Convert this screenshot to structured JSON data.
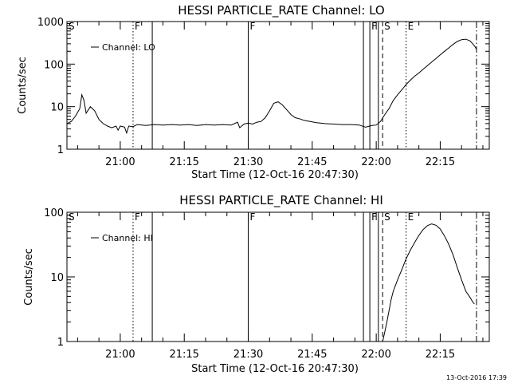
{
  "chart_data": [
    {
      "type": "line",
      "title": "HESSI PARTICLE_RATE Channel: LO",
      "xlabel": "Start Time (12-Oct-16 20:47:30)",
      "ylabel": "Counts/sec",
      "y_scale": "log",
      "ylim": [
        1,
        1000
      ],
      "y_ticks": [
        1,
        10,
        100,
        1000
      ],
      "y_tick_labels": [
        "1",
        "10",
        "100",
        "1000"
      ],
      "xlim": [
        "20:47:30",
        "22:26:30"
      ],
      "x_ticks": [
        "21:00",
        "21:15",
        "21:30",
        "21:45",
        "22:00",
        "22:15"
      ],
      "legend": {
        "position": "top-left",
        "entries": [
          "Channel: LO"
        ]
      },
      "grid": false,
      "series": [
        {
          "name": "Channel: LO",
          "points": [
            [
              "20:47:30",
              4
            ],
            [
              "20:48:30",
              4.5
            ],
            [
              "20:49:30",
              6
            ],
            [
              "20:50:30",
              9
            ],
            [
              "20:51:00",
              19
            ],
            [
              "20:51:30",
              14
            ],
            [
              "20:52:00",
              7
            ],
            [
              "20:53:00",
              10
            ],
            [
              "20:54:00",
              8
            ],
            [
              "20:55:00",
              5
            ],
            [
              "20:56:00",
              4
            ],
            [
              "20:57:00",
              3.5
            ],
            [
              "20:58:00",
              3.2
            ],
            [
              "20:59:00",
              3.5
            ],
            [
              "20:59:30",
              2.8
            ],
            [
              "21:00:00",
              3.5
            ],
            [
              "21:01:00",
              3.3
            ],
            [
              "21:01:30",
              2.4
            ],
            [
              "21:02:00",
              3.5
            ],
            [
              "21:03:00",
              3.4
            ],
            [
              "21:04:00",
              3.8
            ],
            [
              "21:06:00",
              3.6
            ],
            [
              "21:08:00",
              3.8
            ],
            [
              "21:10:00",
              3.7
            ],
            [
              "21:12:00",
              3.8
            ],
            [
              "21:14:00",
              3.7
            ],
            [
              "21:16:00",
              3.8
            ],
            [
              "21:18:00",
              3.6
            ],
            [
              "21:20:00",
              3.8
            ],
            [
              "21:22:00",
              3.7
            ],
            [
              "21:24:00",
              3.8
            ],
            [
              "21:26:00",
              3.7
            ],
            [
              "21:27:30",
              4.3
            ],
            [
              "21:28:00",
              3.2
            ],
            [
              "21:29:00",
              3.9
            ],
            [
              "21:30:00",
              4.1
            ],
            [
              "21:31:00",
              3.9
            ],
            [
              "21:32:00",
              4.3
            ],
            [
              "21:33:00",
              4.5
            ],
            [
              "21:34:00",
              5.5
            ],
            [
              "21:35:00",
              8
            ],
            [
              "21:36:00",
              12
            ],
            [
              "21:37:00",
              13
            ],
            [
              "21:38:00",
              11
            ],
            [
              "21:39:00",
              8.5
            ],
            [
              "21:40:00",
              6.5
            ],
            [
              "21:41:00",
              5.5
            ],
            [
              "21:42:00",
              5.2
            ],
            [
              "21:43:00",
              4.8
            ],
            [
              "21:44:00",
              4.6
            ],
            [
              "21:46:00",
              4.2
            ],
            [
              "21:48:00",
              4
            ],
            [
              "21:50:00",
              3.9
            ],
            [
              "21:52:00",
              3.8
            ],
            [
              "21:54:00",
              3.8
            ],
            [
              "21:56:00",
              3.7
            ],
            [
              "21:57:30",
              3.3
            ],
            [
              "21:59:00",
              3.6
            ],
            [
              "22:00:00",
              3.7
            ],
            [
              "22:01:00",
              4.5
            ],
            [
              "22:02:00",
              6.5
            ],
            [
              "22:03:00",
              9
            ],
            [
              "22:04:00",
              14
            ],
            [
              "22:05:00",
              19
            ],
            [
              "22:06:00",
              25
            ],
            [
              "22:07:00",
              33
            ],
            [
              "22:08:00",
              42
            ],
            [
              "22:09:00",
              52
            ],
            [
              "22:10:00",
              62
            ],
            [
              "22:11:00",
              76
            ],
            [
              "22:12:00",
              92
            ],
            [
              "22:13:00",
              112
            ],
            [
              "22:14:00",
              135
            ],
            [
              "22:15:00",
              165
            ],
            [
              "22:16:00",
              200
            ],
            [
              "22:17:00",
              240
            ],
            [
              "22:18:00",
              290
            ],
            [
              "22:19:00",
              340
            ],
            [
              "22:20:00",
              375
            ],
            [
              "22:21:00",
              385
            ],
            [
              "22:22:00",
              350
            ],
            [
              "22:23:00",
              270
            ],
            [
              "22:23:30",
              225
            ]
          ]
        }
      ],
      "markers": [
        {
          "label": "S",
          "time": "20:47:30",
          "style": "solid"
        },
        {
          "label": "F",
          "time": "21:03:00",
          "style": "dotted"
        },
        {
          "label": "",
          "time": "21:07:30",
          "style": "solid"
        },
        {
          "label": "F",
          "time": "21:30:00",
          "style": "solid"
        },
        {
          "label": "",
          "time": "21:57:00",
          "style": "solid"
        },
        {
          "label": "F",
          "time": "21:58:30",
          "style": "solid"
        },
        {
          "label": "",
          "time": "22:00:30",
          "style": "solid"
        },
        {
          "label": "S",
          "time": "22:01:30",
          "style": "dashed"
        },
        {
          "label": "E",
          "time": "22:07:00",
          "style": "dotted"
        },
        {
          "label": "",
          "time": "22:23:30",
          "style": "dashdot"
        }
      ]
    },
    {
      "type": "line",
      "title": "HESSI PARTICLE_RATE Channel: HI",
      "xlabel": "Start Time (12-Oct-16 20:47:30)",
      "ylabel": "Counts/sec",
      "y_scale": "log",
      "ylim": [
        1,
        100
      ],
      "y_ticks": [
        1,
        10,
        100
      ],
      "y_tick_labels": [
        "1",
        "10",
        "100"
      ],
      "xlim": [
        "20:47:30",
        "22:26:30"
      ],
      "x_ticks": [
        "21:00",
        "21:15",
        "21:30",
        "21:45",
        "22:00",
        "22:15"
      ],
      "legend": {
        "position": "top-left",
        "entries": [
          "Channel: HI"
        ]
      },
      "grid": false,
      "series": [
        {
          "name": "Channel: HI",
          "points": [
            [
              "22:01:30",
              1
            ],
            [
              "22:02:00",
              1.4
            ],
            [
              "22:02:30",
              2
            ],
            [
              "22:03:00",
              3
            ],
            [
              "22:03:30",
              4.5
            ],
            [
              "22:04:00",
              6
            ],
            [
              "22:05:00",
              9
            ],
            [
              "22:06:00",
              13
            ],
            [
              "22:07:00",
              19
            ],
            [
              "22:08:00",
              26
            ],
            [
              "22:09:00",
              34
            ],
            [
              "22:10:00",
              44
            ],
            [
              "22:11:00",
              54
            ],
            [
              "22:12:00",
              62
            ],
            [
              "22:13:00",
              66
            ],
            [
              "22:14:00",
              63
            ],
            [
              "22:15:00",
              55
            ],
            [
              "22:16:00",
              43
            ],
            [
              "22:17:00",
              32
            ],
            [
              "22:18:00",
              22
            ],
            [
              "22:19:00",
              14
            ],
            [
              "22:20:00",
              9
            ],
            [
              "22:21:00",
              6
            ],
            [
              "22:22:00",
              4.8
            ],
            [
              "22:22:30",
              4.2
            ],
            [
              "22:23:00",
              3.8
            ]
          ]
        }
      ],
      "markers": [
        {
          "label": "S",
          "time": "20:47:30",
          "style": "solid"
        },
        {
          "label": "F",
          "time": "21:03:00",
          "style": "dotted"
        },
        {
          "label": "",
          "time": "21:07:30",
          "style": "solid"
        },
        {
          "label": "F",
          "time": "21:30:00",
          "style": "solid"
        },
        {
          "label": "",
          "time": "21:57:00",
          "style": "solid"
        },
        {
          "label": "F",
          "time": "21:58:30",
          "style": "solid"
        },
        {
          "label": "",
          "time": "22:00:30",
          "style": "solid"
        },
        {
          "label": "S",
          "time": "22:01:30",
          "style": "dashed"
        },
        {
          "label": "E",
          "time": "22:07:00",
          "style": "dotted"
        },
        {
          "label": "",
          "time": "22:23:30",
          "style": "dashdot"
        }
      ]
    }
  ],
  "footer": {
    "timestamp": "13-Oct-2016 17:39"
  }
}
